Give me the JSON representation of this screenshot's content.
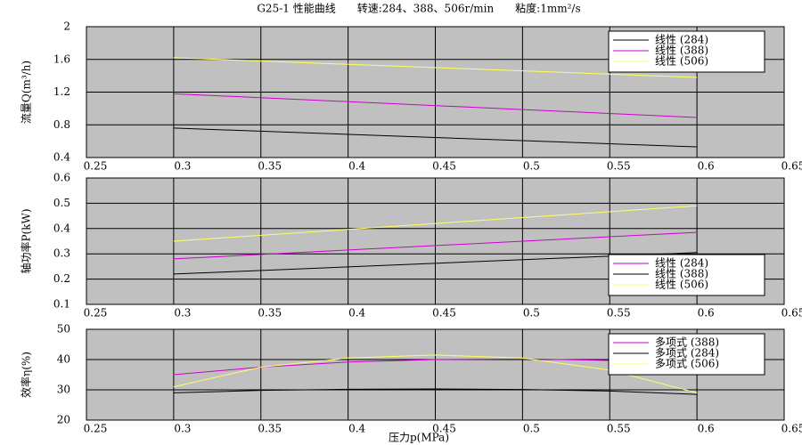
{
  "chart_data": [
    {
      "type": "line",
      "title": "G25-1 性能曲线　　转速:284、388、506r/min　　粘度:1mm²/s",
      "y_label": "流量Q(m³/h)",
      "x": [
        0.3,
        0.6
      ],
      "series": [
        {
          "name": "线性 (284)",
          "color": "#000000",
          "values": [
            0.76,
            0.53
          ]
        },
        {
          "name": "线性 (388)",
          "color": "#cc00cc",
          "values": [
            1.18,
            0.89
          ]
        },
        {
          "name": "线性 (506)",
          "color": "#ffff66",
          "values": [
            1.62,
            1.38
          ]
        }
      ],
      "xlim": [
        0.25,
        0.65
      ],
      "xticks": [
        0.25,
        0.3,
        0.35,
        0.4,
        0.45,
        0.5,
        0.55,
        0.6,
        0.65
      ],
      "ylim": [
        0.4,
        2
      ],
      "yticks": [
        0.4,
        0.8,
        1.2,
        1.6,
        2
      ],
      "grid": true,
      "legend": "upper right"
    },
    {
      "type": "line",
      "y_label": "轴功率P(kW)",
      "x": [
        0.3,
        0.6
      ],
      "series": [
        {
          "name": "线性 (284)",
          "color": "#cc00cc",
          "values": [
            0.28,
            0.385
          ]
        },
        {
          "name": "线性 (388)",
          "color": "#000000",
          "values": [
            0.22,
            0.305
          ]
        },
        {
          "name": "线性 (506)",
          "color": "#ffff66",
          "values": [
            0.35,
            0.49
          ]
        }
      ],
      "xlim": [
        0.25,
        0.65
      ],
      "xticks": [
        0.25,
        0.3,
        0.35,
        0.4,
        0.45,
        0.5,
        0.55,
        0.6,
        0.65
      ],
      "ylim": [
        0.1,
        0.6
      ],
      "yticks": [
        0.1,
        0.2,
        0.3,
        0.4,
        0.5,
        0.6
      ],
      "grid": true,
      "legend": "lower right"
    },
    {
      "type": "line",
      "y_label": "效率η(%)",
      "x_label": "压力p(MPa)",
      "x": [
        0.3,
        0.35,
        0.4,
        0.45,
        0.5,
        0.55,
        0.6
      ],
      "series": [
        {
          "name": "多项式 (388)",
          "color": "#cc00cc",
          "values": [
            35,
            37.5,
            39.2,
            40,
            40.2,
            39.7,
            38.5
          ]
        },
        {
          "name": "多项式 (284)",
          "color": "#000000",
          "values": [
            29,
            29.8,
            30.2,
            30.3,
            30.1,
            29.6,
            28.5
          ]
        },
        {
          "name": "多项式 (506)",
          "color": "#ffff66",
          "values": [
            31,
            37.5,
            40.5,
            41.5,
            40.5,
            36.5,
            29
          ]
        }
      ],
      "xlim": [
        0.25,
        0.65
      ],
      "xticks": [
        0.25,
        0.3,
        0.35,
        0.4,
        0.45,
        0.5,
        0.55,
        0.6,
        0.65
      ],
      "ylim": [
        20,
        50
      ],
      "yticks": [
        20,
        30,
        40,
        50
      ],
      "grid": true,
      "legend": "upper right"
    }
  ]
}
